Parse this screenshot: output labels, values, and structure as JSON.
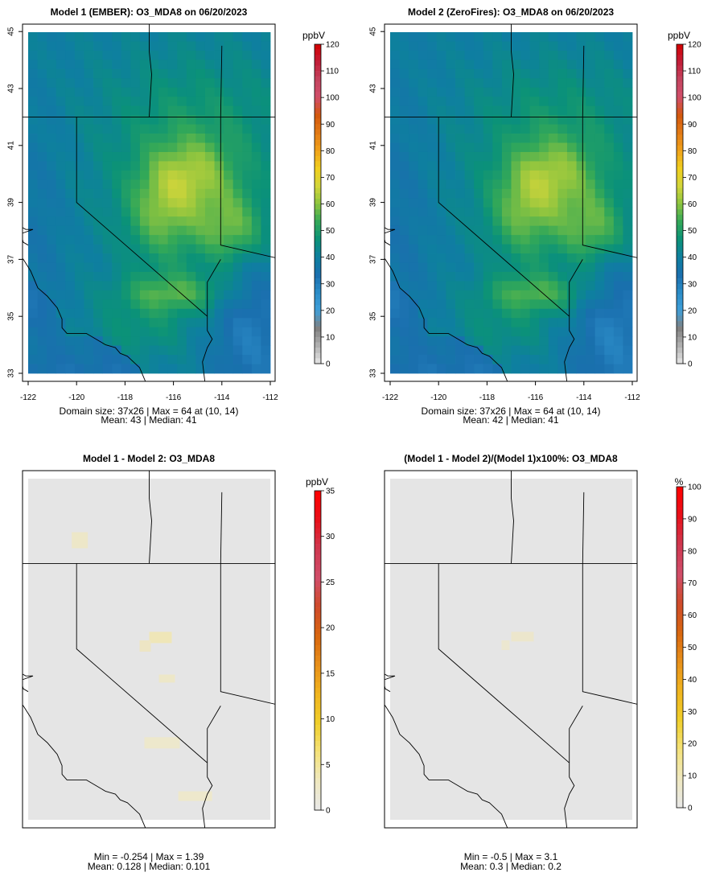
{
  "colors": {
    "ramp_conc": [
      "#e6e6e6",
      "#b0b0b0",
      "#7f7f7f",
      "#3f9fd9",
      "#2b8cc7",
      "#1a6fae",
      "#0e7fa0",
      "#0b9278",
      "#33a858",
      "#8cc43f",
      "#d2d53a",
      "#f0cf1e",
      "#f0a21a",
      "#e27a15",
      "#d2570e",
      "#d14e6a",
      "#c4445f",
      "#c21d38",
      "#d40000"
    ],
    "ramp_diff": [
      "#e8e8e8",
      "#efe8c0",
      "#f4e27a",
      "#f0cf2a",
      "#f0b41e",
      "#e8901a",
      "#d8660f",
      "#cf4b2a",
      "#d14e6a",
      "#cf3850",
      "#e8101a",
      "#ff0000"
    ],
    "missing_fill": "#e5e5e5",
    "boundary": "#000000"
  },
  "chart_data": [
    {
      "type": "heatmap",
      "panel": "m1",
      "title": "Model 1 (EMBER): O3_MDA8 on 06/20/2023",
      "variable": "O3_MDA8",
      "date": "06/20/2023",
      "units": "ppbV",
      "grid": {
        "cols": 26,
        "rows": 37,
        "lon_range": [
          -122,
          -112
        ],
        "lat_range": [
          33,
          45
        ]
      },
      "xlim": [
        -122,
        -112
      ],
      "ylim": [
        33,
        45
      ],
      "x_ticks": [
        "-122",
        "-120",
        "-118",
        "-116",
        "-114",
        "-112"
      ],
      "y_ticks": [
        "33",
        "35",
        "37",
        "39",
        "41",
        "43",
        "45"
      ],
      "colorbar": {
        "min": 0,
        "max": 120,
        "ticks": [
          "0",
          "10",
          "20",
          "30",
          "40",
          "50",
          "60",
          "70",
          "80",
          "90",
          "100",
          "110",
          "120"
        ]
      },
      "stats_line1": "Domain size: 37x26 | Max = 64 at (10, 14)",
      "stats_line2": "Mean: 43 |  Median: 41",
      "stats": {
        "domain_size": "37x26",
        "max": 64,
        "max_at": [
          10,
          14
        ],
        "mean": 43,
        "median": 41
      }
    },
    {
      "type": "heatmap",
      "panel": "m2",
      "title": "Model 2 (ZeroFires): O3_MDA8 on 06/20/2023",
      "variable": "O3_MDA8",
      "date": "06/20/2023",
      "units": "ppbV",
      "grid": {
        "cols": 26,
        "rows": 37,
        "lon_range": [
          -122,
          -112
        ],
        "lat_range": [
          33,
          45
        ]
      },
      "xlim": [
        -122,
        -112
      ],
      "ylim": [
        33,
        45
      ],
      "x_ticks": [
        "-122",
        "-120",
        "-118",
        "-116",
        "-114",
        "-112"
      ],
      "y_ticks": [
        "33",
        "35",
        "37",
        "39",
        "41",
        "43",
        "45"
      ],
      "colorbar": {
        "min": 0,
        "max": 120,
        "ticks": [
          "0",
          "10",
          "20",
          "30",
          "40",
          "50",
          "60",
          "70",
          "80",
          "90",
          "100",
          "110",
          "120"
        ]
      },
      "stats_line1": "Domain size: 37x26 | Max = 64 at (10, 14)",
      "stats_line2": "Mean: 42 |  Median: 41",
      "stats": {
        "domain_size": "37x26",
        "max": 64,
        "max_at": [
          10,
          14
        ],
        "mean": 42,
        "median": 41
      }
    },
    {
      "type": "heatmap",
      "panel": "diff",
      "title": "Model 1 - Model 2: O3_MDA8",
      "units": "ppbV",
      "colorbar": {
        "min": 0,
        "max": 35,
        "ticks": [
          "0",
          "5",
          "10",
          "15",
          "20",
          "25",
          "30",
          "35"
        ]
      },
      "stats_line1": "Min = -0.254 | Max = 1.39",
      "stats_line2": "Mean: 0.128 |  Median: 0.101",
      "stats": {
        "min": -0.254,
        "max": 1.39,
        "mean": 0.128,
        "median": 0.101
      }
    },
    {
      "type": "heatmap",
      "panel": "pct",
      "title": "(Model 1 - Model 2)/(Model 1)x100%: O3_MDA8",
      "units": "%",
      "colorbar": {
        "min": 0,
        "max": 100,
        "ticks": [
          "0",
          "10",
          "20",
          "30",
          "40",
          "50",
          "60",
          "70",
          "80",
          "90",
          "100"
        ]
      },
      "stats_line1": "Min = -0.5 | Max = 3.1",
      "stats_line2": "Mean: 0.3 |  Median: 0.2",
      "stats": {
        "min": -0.5,
        "max": 3.1,
        "mean": 0.3,
        "median": 0.2
      }
    }
  ]
}
